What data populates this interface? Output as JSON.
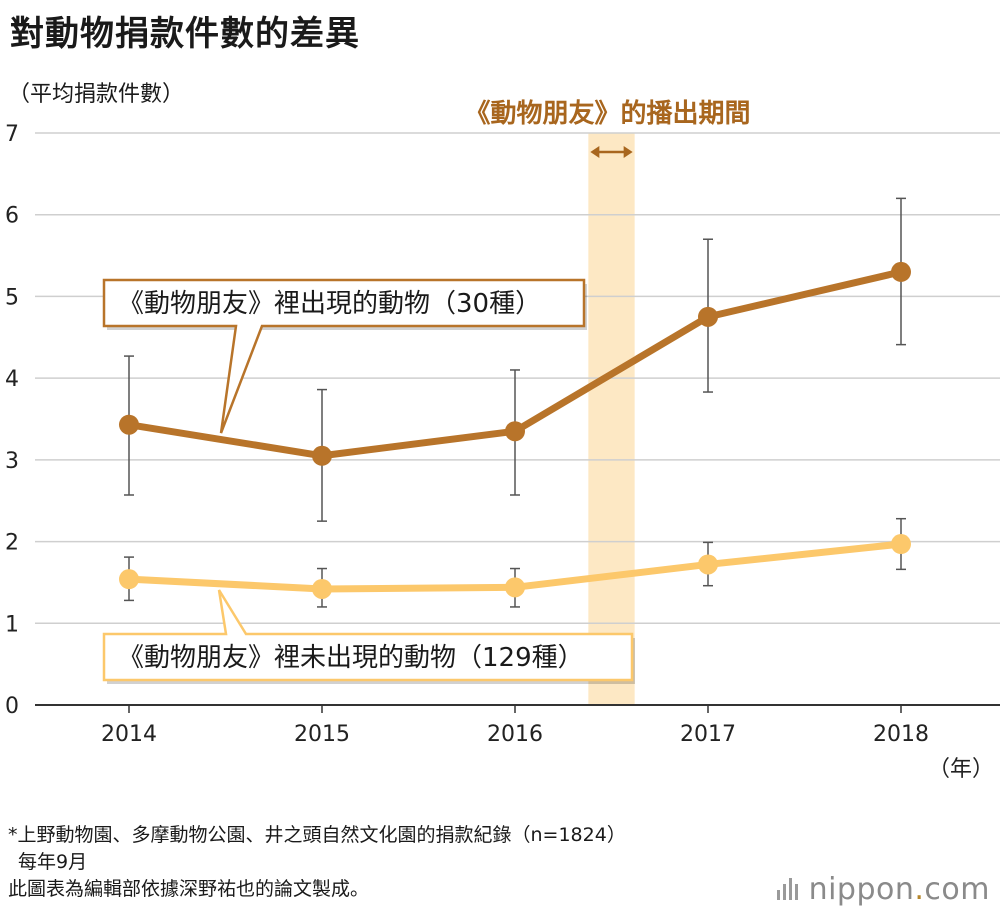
{
  "title": "對動物捐款件數的差異",
  "unit_label": "（平均捐款件數）",
  "chart_data": {
    "type": "line",
    "x": [
      2014,
      2015,
      2016,
      2017,
      2018
    ],
    "x_tick_labels": [
      "2014",
      "2015",
      "2016",
      "2017",
      "2018"
    ],
    "x_unit_label": "（年）",
    "y_ticks": [
      "0",
      "1",
      "2",
      "3",
      "4",
      "5",
      "6",
      "7"
    ],
    "ylim": [
      0,
      7
    ],
    "grid": true,
    "series": [
      {
        "name": "《動物朋友》裡出現的動物（30種）",
        "color": "#b8742a",
        "values": [
          3.43,
          3.05,
          3.35,
          4.75,
          5.3
        ],
        "error_low": [
          2.57,
          2.25,
          2.57,
          3.83,
          4.41
        ],
        "error_high": [
          4.27,
          3.86,
          4.1,
          5.7,
          6.2
        ]
      },
      {
        "name": "《動物朋友》裡未出現的動物（129種）",
        "color": "#fcc86b",
        "values": [
          1.54,
          1.42,
          1.44,
          1.72,
          1.97
        ],
        "error_low": [
          1.28,
          1.2,
          1.2,
          1.46,
          1.66
        ],
        "error_high": [
          1.81,
          1.67,
          1.67,
          1.99,
          2.28
        ]
      }
    ],
    "highlight_band": {
      "label": "《動物朋友》的播出期間",
      "from": 2016.38,
      "to": 2016.62,
      "color": "#fde8c4",
      "label_color": "#a8661e"
    }
  },
  "notes": [
    "*上野動物園、多摩動物公園、井之頭自然文化園的捐款紀錄（n=1824）",
    "每年9月",
    "此圖表為編輯部依據深野祐也的論文製成。"
  ],
  "logo": {
    "name": "nippon",
    "dot": ".",
    "tld": "com"
  }
}
